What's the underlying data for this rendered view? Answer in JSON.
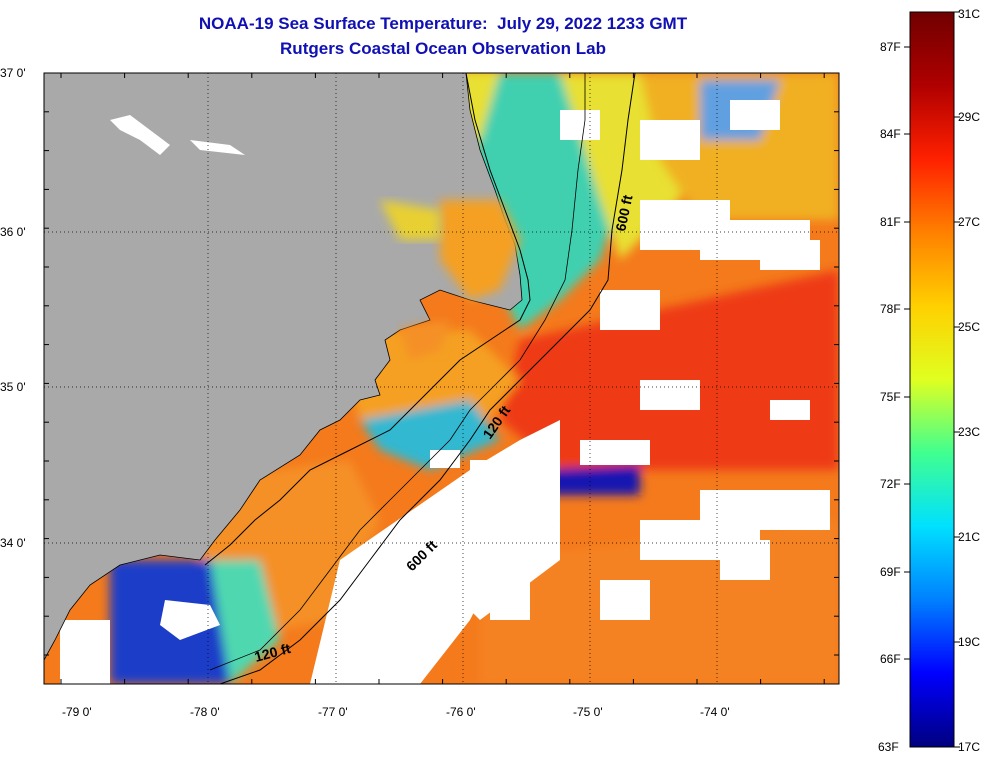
{
  "title": {
    "line1": "NOAA-19 Sea Surface Temperature:  July 29, 2022 1233 GMT",
    "line2": "Rutgers Coastal Ocean Observation Lab"
  },
  "map": {
    "lat_labels": [
      "37 0'",
      "36 0'",
      "35 0'",
      "34 0'"
    ],
    "lon_labels": [
      "-79 0'",
      "-78 0'",
      "-77 0'",
      "-76 0'",
      "-75 0'",
      "-74 0'"
    ],
    "depth_labels": [
      "600 ft",
      "120 ft",
      "600 ft",
      "120 ft"
    ],
    "land_color": "#a9a9a9",
    "cloud_color": "#ffffff"
  },
  "colorbar": {
    "celsius_labels": [
      "31C",
      "29C",
      "27C",
      "25C",
      "23C",
      "21C",
      "19C",
      "17C"
    ],
    "fahrenheit_labels": [
      "87F",
      "84F",
      "81F",
      "78F",
      "75F",
      "72F",
      "69F",
      "66F",
      "63F"
    ],
    "range_celsius": [
      17,
      31
    ],
    "gradient_colors": [
      "#00007f",
      "#0000ff",
      "#0080ff",
      "#00e0ff",
      "#40ff90",
      "#e0ff20",
      "#ffd000",
      "#ff8000",
      "#ff2000",
      "#b00000",
      "#700000"
    ]
  },
  "sst_palette": {
    "cold_blue": "#1030d0",
    "cyan": "#30c8e0",
    "green": "#80e070",
    "yellow": "#f0e020",
    "orange": "#f89020",
    "red_orange": "#f05018"
  }
}
